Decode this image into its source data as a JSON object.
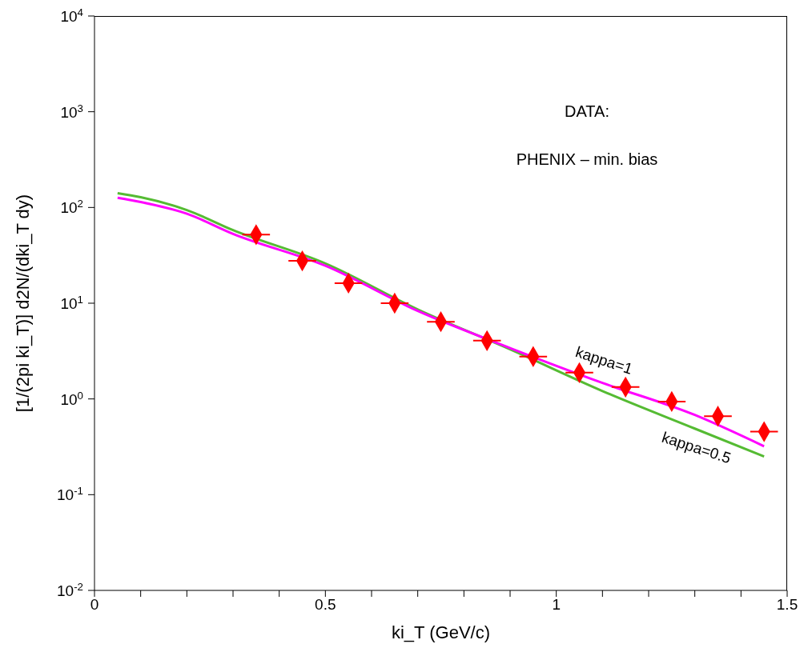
{
  "chart_data": {
    "type": "scatter",
    "xlabel": "ki_T (GeV/c)",
    "ylabel": "[1/(2pi ki_T)] d2N/(dki_T dy)",
    "annotations": [
      "DATA:",
      "PHENIX – min. bias"
    ],
    "log": "y",
    "grid": false,
    "legend": false,
    "xlim": [
      0,
      1.5
    ],
    "xticks": [
      0,
      {
        "value": 0.1,
        "label": null
      },
      {
        "value": 0.2,
        "label": null
      },
      {
        "value": 0.3,
        "label": null
      },
      {
        "value": 0.4,
        "label": null
      },
      0.5,
      {
        "value": 0.6,
        "label": null
      },
      {
        "value": 0.7,
        "label": null
      },
      {
        "value": 0.8,
        "label": null
      },
      {
        "value": 0.9,
        "label": null
      },
      1,
      {
        "value": 1.1,
        "label": null
      },
      {
        "value": 1.2,
        "label": null
      },
      {
        "value": 1.3,
        "label": null
      },
      {
        "value": 1.4,
        "label": null
      },
      1.5
    ],
    "ylim": [
      0.01,
      10000
    ],
    "yticks": [
      {
        "value": 0.01,
        "label": "10$^{-2}$"
      },
      {
        "value": 0.1,
        "label": "10$^{-1}$"
      },
      {
        "value": 1,
        "label": "10$^{0}$"
      },
      {
        "value": 10,
        "label": "10$^{1}$"
      },
      {
        "value": 100,
        "label": "10$^{2}$"
      },
      {
        "value": 1000,
        "label": "10$^{3}$"
      },
      {
        "value": 10000,
        "label": "10$^{4}$"
      }
    ],
    "series": [
      {
        "type": "line",
        "name": "kappa=0.5",
        "color": "#55bb33",
        "x": [
          0.05,
          0.1,
          0.2,
          0.3,
          0.5,
          0.7,
          0.9,
          1.1,
          1.3,
          1.45
        ],
        "values": [
          141,
          128,
          94,
          58,
          26,
          8.6,
          3.3,
          1.21,
          0.49,
          0.25
        ]
      },
      {
        "type": "line",
        "name": "kappa=1",
        "color": "#ff00ff",
        "x": [
          0.05,
          0.1,
          0.2,
          0.3,
          0.5,
          0.7,
          0.9,
          1.1,
          1.3,
          1.45
        ],
        "values": [
          126,
          114,
          86,
          53,
          24.6,
          8.3,
          3.4,
          1.47,
          0.68,
          0.32
        ]
      },
      {
        "color": "#ff0000",
        "marker": "diamond",
        "x": [
          0.35,
          0.45,
          0.55,
          0.65,
          0.75,
          0.85,
          0.95,
          1.05,
          1.15,
          1.25,
          1.35,
          1.45
        ],
        "values": [
          52,
          27.7,
          16.2,
          10,
          6.4,
          4.06,
          2.77,
          1.88,
          1.33,
          0.94,
          0.66,
          0.455
        ],
        "xerrors": [
          0.03,
          0.03,
          0.03,
          0.03,
          0.03,
          0.03,
          0.03,
          0.03,
          0.03,
          0.03,
          0.03,
          0.03
        ]
      }
    ]
  }
}
